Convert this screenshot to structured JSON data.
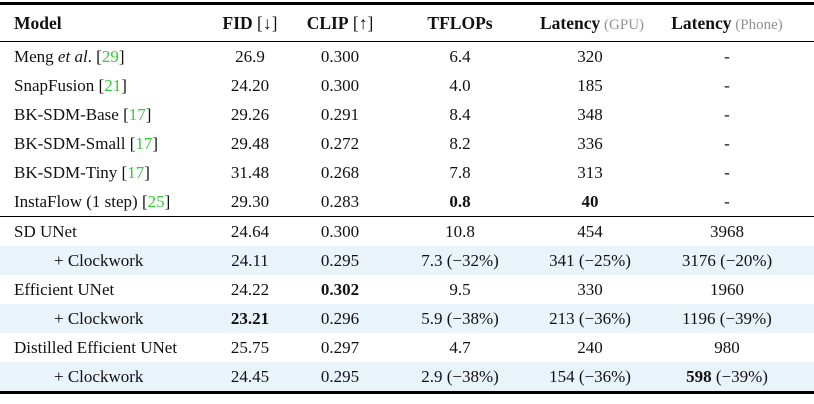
{
  "colors": {
    "citation_green": "#35cc35",
    "highlight_blue": "#e9f3fa",
    "header_paren_gray": "#919191",
    "rule_black": "#000000"
  },
  "table": {
    "columns": [
      {
        "id": "model",
        "align": "left",
        "segments": [
          {
            "t": "Model",
            "b": true
          }
        ]
      },
      {
        "id": "fid",
        "align": "center",
        "segments": [
          {
            "t": "FID",
            "b": true
          },
          {
            "t": " [↓]"
          }
        ]
      },
      {
        "id": "clip",
        "align": "center",
        "segments": [
          {
            "t": "CLIP",
            "b": true
          },
          {
            "t": " [↑]"
          }
        ]
      },
      {
        "id": "tflops",
        "align": "center",
        "segments": [
          {
            "t": "TFLOPs",
            "b": true
          }
        ]
      },
      {
        "id": "latency-gpu",
        "align": "center",
        "segments": [
          {
            "t": "Latency",
            "b": true
          },
          {
            "t": " (GPU)",
            "c": "gray",
            "s": true
          }
        ]
      },
      {
        "id": "latency-phone",
        "align": "center",
        "segments": [
          {
            "t": "Latency",
            "b": true
          },
          {
            "t": " (Phone)",
            "c": "gray",
            "s": true
          }
        ]
      }
    ],
    "sections": [
      {
        "rows": [
          {
            "name": "meng-et-al",
            "highlight": false,
            "indent": false,
            "cells": [
              [
                {
                  "t": "Meng "
                },
                {
                  "t": "et al",
                  "i": true
                },
                {
                  "t": ". ["
                },
                {
                  "t": "29",
                  "c": "green",
                  "link": true
                },
                {
                  "t": "]"
                }
              ],
              [
                {
                  "t": "26.9"
                }
              ],
              [
                {
                  "t": "0.300"
                }
              ],
              [
                {
                  "t": "6.4"
                }
              ],
              [
                {
                  "t": "320"
                }
              ],
              [
                {
                  "t": "-"
                }
              ]
            ]
          },
          {
            "name": "snapfusion",
            "highlight": false,
            "indent": false,
            "cells": [
              [
                {
                  "t": "SnapFusion ["
                },
                {
                  "t": "21",
                  "c": "green",
                  "link": true
                },
                {
                  "t": "]"
                }
              ],
              [
                {
                  "t": "24.20"
                }
              ],
              [
                {
                  "t": "0.300"
                }
              ],
              [
                {
                  "t": "4.0"
                }
              ],
              [
                {
                  "t": "185"
                }
              ],
              [
                {
                  "t": "-"
                }
              ]
            ]
          },
          {
            "name": "bk-sdm-base",
            "highlight": false,
            "indent": false,
            "cells": [
              [
                {
                  "t": "BK-SDM-Base ["
                },
                {
                  "t": "17",
                  "c": "green",
                  "link": true
                },
                {
                  "t": "]"
                }
              ],
              [
                {
                  "t": "29.26"
                }
              ],
              [
                {
                  "t": "0.291"
                }
              ],
              [
                {
                  "t": "8.4"
                }
              ],
              [
                {
                  "t": "348"
                }
              ],
              [
                {
                  "t": "-"
                }
              ]
            ]
          },
          {
            "name": "bk-sdm-small",
            "highlight": false,
            "indent": false,
            "cells": [
              [
                {
                  "t": "BK-SDM-Small ["
                },
                {
                  "t": "17",
                  "c": "green",
                  "link": true
                },
                {
                  "t": "]"
                }
              ],
              [
                {
                  "t": "29.48"
                }
              ],
              [
                {
                  "t": "0.272"
                }
              ],
              [
                {
                  "t": "8.2"
                }
              ],
              [
                {
                  "t": "336"
                }
              ],
              [
                {
                  "t": "-"
                }
              ]
            ]
          },
          {
            "name": "bk-sdm-tiny",
            "highlight": false,
            "indent": false,
            "cells": [
              [
                {
                  "t": "BK-SDM-Tiny ["
                },
                {
                  "t": "17",
                  "c": "green",
                  "link": true
                },
                {
                  "t": "]"
                }
              ],
              [
                {
                  "t": "31.48"
                }
              ],
              [
                {
                  "t": "0.268"
                }
              ],
              [
                {
                  "t": "7.8"
                }
              ],
              [
                {
                  "t": "313"
                }
              ],
              [
                {
                  "t": "-"
                }
              ]
            ]
          },
          {
            "name": "instaflow-1-step",
            "highlight": false,
            "indent": false,
            "cells": [
              [
                {
                  "t": "InstaFlow (1 step) ["
                },
                {
                  "t": "25",
                  "c": "green",
                  "link": true
                },
                {
                  "t": "]"
                }
              ],
              [
                {
                  "t": "29.30"
                }
              ],
              [
                {
                  "t": "0.283"
                }
              ],
              [
                {
                  "t": "0.8",
                  "b": true
                }
              ],
              [
                {
                  "t": "40",
                  "b": true
                }
              ],
              [
                {
                  "t": "-"
                }
              ]
            ]
          }
        ]
      },
      {
        "rows": [
          {
            "name": "sd-unet",
            "highlight": false,
            "indent": false,
            "cells": [
              [
                {
                  "t": "SD UNet"
                }
              ],
              [
                {
                  "t": "24.64"
                }
              ],
              [
                {
                  "t": "0.300"
                }
              ],
              [
                {
                  "t": "10.8"
                }
              ],
              [
                {
                  "t": "454"
                }
              ],
              [
                {
                  "t": "3968"
                }
              ]
            ]
          },
          {
            "name": "sd-unet-clockwork",
            "highlight": true,
            "indent": true,
            "cells": [
              [
                {
                  "t": "+ Clockwork"
                }
              ],
              [
                {
                  "t": "24.11"
                }
              ],
              [
                {
                  "t": "0.295"
                }
              ],
              [
                {
                  "t": "7.3 (−32%)"
                }
              ],
              [
                {
                  "t": "341 (−25%)"
                }
              ],
              [
                {
                  "t": "3176 (−20%)"
                }
              ]
            ]
          },
          {
            "name": "efficient-unet",
            "highlight": false,
            "indent": false,
            "cells": [
              [
                {
                  "t": "Efficient UNet"
                }
              ],
              [
                {
                  "t": "24.22"
                }
              ],
              [
                {
                  "t": "0.302",
                  "b": true
                }
              ],
              [
                {
                  "t": "9.5"
                }
              ],
              [
                {
                  "t": "330"
                }
              ],
              [
                {
                  "t": "1960"
                }
              ]
            ]
          },
          {
            "name": "efficient-unet-clockwork",
            "highlight": true,
            "indent": true,
            "cells": [
              [
                {
                  "t": "+ Clockwork"
                }
              ],
              [
                {
                  "t": "23.21",
                  "b": true
                }
              ],
              [
                {
                  "t": "0.296"
                }
              ],
              [
                {
                  "t": "5.9 (−38%)"
                }
              ],
              [
                {
                  "t": "213 (−36%)"
                }
              ],
              [
                {
                  "t": "1196 (−39%)"
                }
              ]
            ]
          },
          {
            "name": "distilled-efficient-unet",
            "highlight": false,
            "indent": false,
            "cells": [
              [
                {
                  "t": "Distilled Efficient UNet"
                }
              ],
              [
                {
                  "t": "25.75"
                }
              ],
              [
                {
                  "t": "0.297"
                }
              ],
              [
                {
                  "t": "4.7"
                }
              ],
              [
                {
                  "t": "240"
                }
              ],
              [
                {
                  "t": "980"
                }
              ]
            ]
          },
          {
            "name": "distilled-efficient-unet-clockwork",
            "highlight": true,
            "indent": true,
            "cells": [
              [
                {
                  "t": "+ Clockwork"
                }
              ],
              [
                {
                  "t": "24.45"
                }
              ],
              [
                {
                  "t": "0.295"
                }
              ],
              [
                {
                  "t": "2.9 (−38%)"
                }
              ],
              [
                {
                  "t": "154 (−36%)"
                }
              ],
              [
                {
                  "t": "598",
                  "b": true
                },
                {
                  "t": " (−39%)"
                }
              ]
            ]
          }
        ]
      }
    ]
  }
}
